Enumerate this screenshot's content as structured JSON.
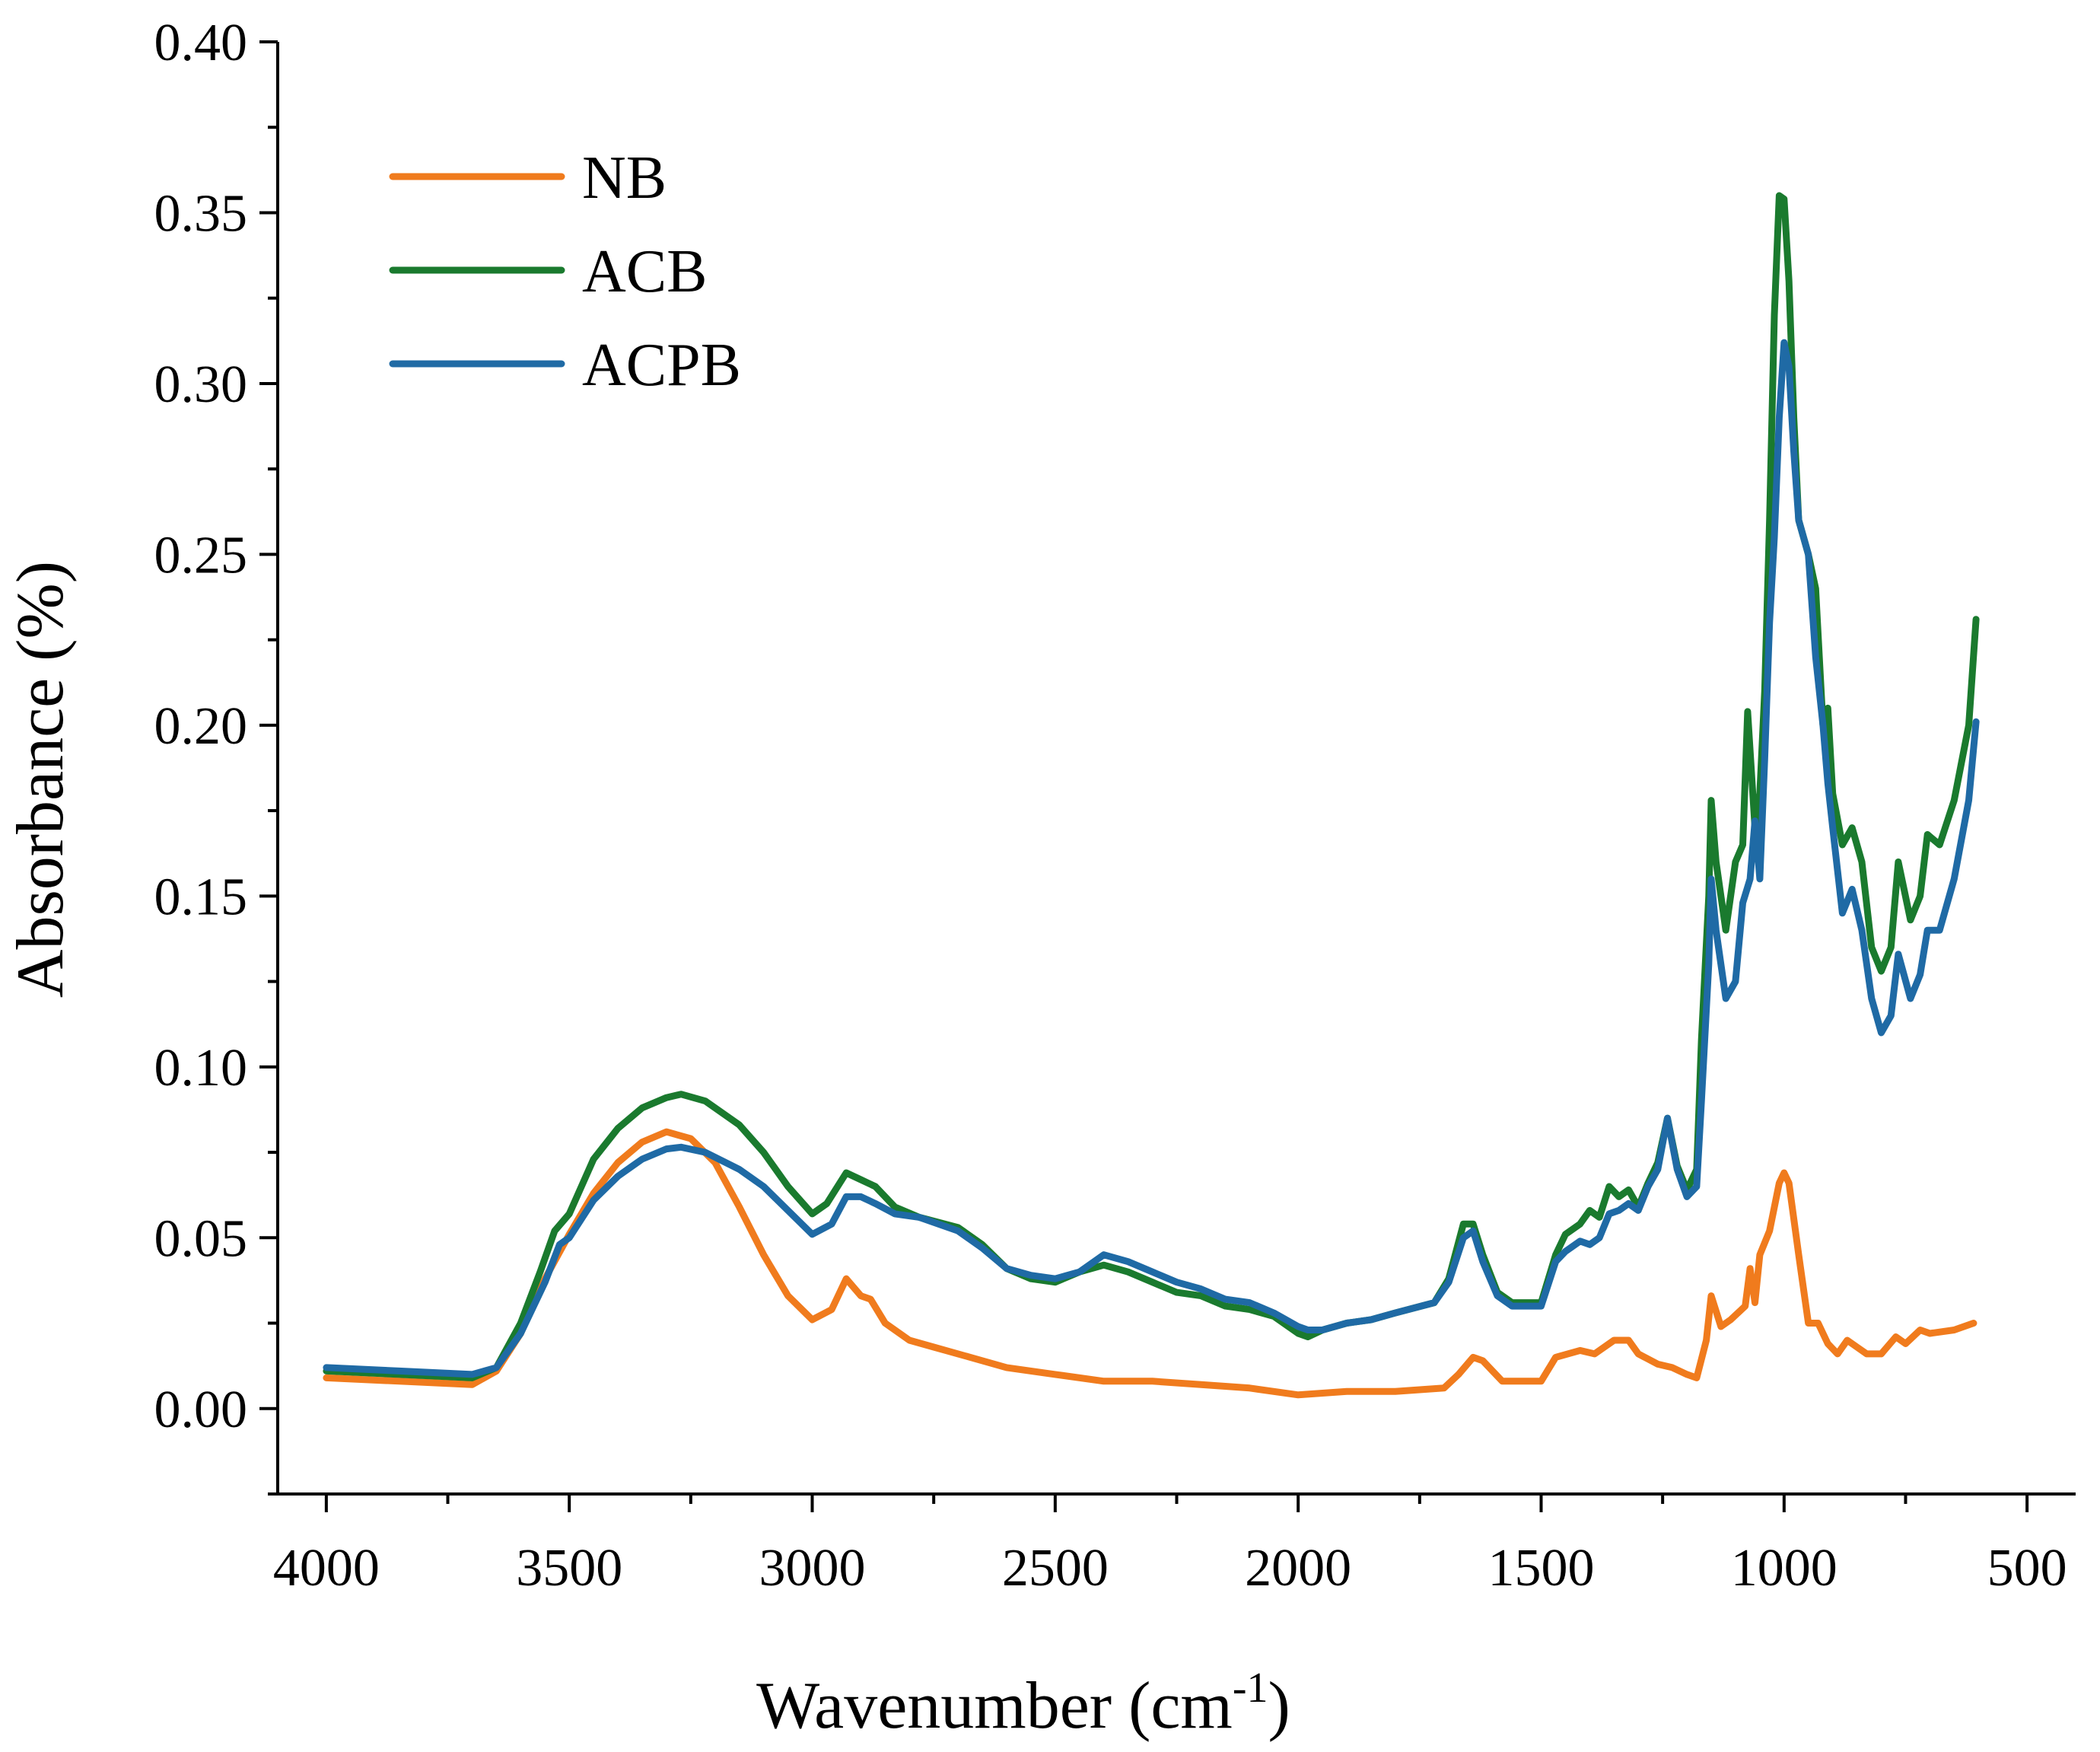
{
  "chart_data": {
    "type": "line",
    "title": "",
    "xlabel": "Wavenumber (cm",
    "xlabel_sup": "-1",
    "xlabel_close": ")",
    "ylabel": "Absorbance (%)",
    "xlim": [
      4100,
      400
    ],
    "ylim": [
      -0.025,
      0.4
    ],
    "x_ticks": [
      4000,
      3500,
      3000,
      2500,
      2000,
      1500,
      1000,
      500
    ],
    "x_tick_labels": [
      "4000",
      "3500",
      "3000",
      "2500",
      "2000",
      "1500",
      "1000",
      "500"
    ],
    "y_ticks": [
      0.0,
      0.05,
      0.1,
      0.15,
      0.2,
      0.25,
      0.3,
      0.35,
      0.4
    ],
    "y_tick_labels": [
      "0.00",
      "0.05",
      "0.10",
      "0.15",
      "0.20",
      "0.25",
      "0.30",
      "0.35",
      "0.40"
    ],
    "legend_position": "top-left",
    "series": [
      {
        "name": "NB",
        "color": "#f07b1d",
        "points": [
          [
            4000,
            0.009
          ],
          [
            3850,
            0.008
          ],
          [
            3700,
            0.007
          ],
          [
            3650,
            0.011
          ],
          [
            3600,
            0.022
          ],
          [
            3550,
            0.038
          ],
          [
            3500,
            0.051
          ],
          [
            3450,
            0.063
          ],
          [
            3400,
            0.072
          ],
          [
            3350,
            0.078
          ],
          [
            3300,
            0.081
          ],
          [
            3250,
            0.079
          ],
          [
            3200,
            0.072
          ],
          [
            3150,
            0.059
          ],
          [
            3100,
            0.045
          ],
          [
            3050,
            0.033
          ],
          [
            3000,
            0.026
          ],
          [
            2960,
            0.029
          ],
          [
            2930,
            0.038
          ],
          [
            2900,
            0.033
          ],
          [
            2880,
            0.032
          ],
          [
            2850,
            0.025
          ],
          [
            2800,
            0.02
          ],
          [
            2750,
            0.018
          ],
          [
            2700,
            0.016
          ],
          [
            2600,
            0.012
          ],
          [
            2500,
            0.01
          ],
          [
            2400,
            0.008
          ],
          [
            2300,
            0.008
          ],
          [
            2200,
            0.007
          ],
          [
            2100,
            0.006
          ],
          [
            2000,
            0.004
          ],
          [
            1900,
            0.005
          ],
          [
            1800,
            0.005
          ],
          [
            1700,
            0.006
          ],
          [
            1670,
            0.01
          ],
          [
            1640,
            0.015
          ],
          [
            1620,
            0.014
          ],
          [
            1580,
            0.008
          ],
          [
            1500,
            0.008
          ],
          [
            1470,
            0.015
          ],
          [
            1420,
            0.017
          ],
          [
            1390,
            0.016
          ],
          [
            1350,
            0.02
          ],
          [
            1320,
            0.02
          ],
          [
            1300,
            0.016
          ],
          [
            1260,
            0.013
          ],
          [
            1230,
            0.012
          ],
          [
            1200,
            0.01
          ],
          [
            1180,
            0.009
          ],
          [
            1160,
            0.02
          ],
          [
            1150,
            0.033
          ],
          [
            1130,
            0.024
          ],
          [
            1110,
            0.026
          ],
          [
            1080,
            0.03
          ],
          [
            1070,
            0.041
          ],
          [
            1060,
            0.031
          ],
          [
            1050,
            0.045
          ],
          [
            1030,
            0.052
          ],
          [
            1010,
            0.066
          ],
          [
            1000,
            0.069
          ],
          [
            990,
            0.066
          ],
          [
            970,
            0.045
          ],
          [
            950,
            0.025
          ],
          [
            930,
            0.025
          ],
          [
            910,
            0.019
          ],
          [
            890,
            0.016
          ],
          [
            870,
            0.02
          ],
          [
            850,
            0.018
          ],
          [
            830,
            0.016
          ],
          [
            800,
            0.016
          ],
          [
            770,
            0.021
          ],
          [
            750,
            0.019
          ],
          [
            720,
            0.023
          ],
          [
            700,
            0.022
          ],
          [
            650,
            0.023
          ],
          [
            610,
            0.025
          ]
        ]
      },
      {
        "name": "ACB",
        "color": "#1a7a2e",
        "points": [
          [
            4000,
            0.011
          ],
          [
            3850,
            0.01
          ],
          [
            3700,
            0.009
          ],
          [
            3650,
            0.012
          ],
          [
            3600,
            0.025
          ],
          [
            3560,
            0.04
          ],
          [
            3530,
            0.052
          ],
          [
            3500,
            0.057
          ],
          [
            3450,
            0.073
          ],
          [
            3400,
            0.082
          ],
          [
            3350,
            0.088
          ],
          [
            3300,
            0.091
          ],
          [
            3270,
            0.092
          ],
          [
            3220,
            0.09
          ],
          [
            3150,
            0.083
          ],
          [
            3100,
            0.075
          ],
          [
            3050,
            0.065
          ],
          [
            3000,
            0.057
          ],
          [
            2970,
            0.06
          ],
          [
            2930,
            0.069
          ],
          [
            2900,
            0.067
          ],
          [
            2870,
            0.065
          ],
          [
            2830,
            0.059
          ],
          [
            2780,
            0.056
          ],
          [
            2700,
            0.053
          ],
          [
            2650,
            0.048
          ],
          [
            2600,
            0.041
          ],
          [
            2550,
            0.038
          ],
          [
            2500,
            0.037
          ],
          [
            2450,
            0.04
          ],
          [
            2400,
            0.042
          ],
          [
            2350,
            0.04
          ],
          [
            2300,
            0.037
          ],
          [
            2250,
            0.034
          ],
          [
            2200,
            0.033
          ],
          [
            2150,
            0.03
          ],
          [
            2100,
            0.029
          ],
          [
            2050,
            0.027
          ],
          [
            2000,
            0.022
          ],
          [
            1980,
            0.021
          ],
          [
            1950,
            0.023
          ],
          [
            1900,
            0.025
          ],
          [
            1850,
            0.026
          ],
          [
            1800,
            0.028
          ],
          [
            1720,
            0.031
          ],
          [
            1690,
            0.038
          ],
          [
            1660,
            0.054
          ],
          [
            1640,
            0.054
          ],
          [
            1620,
            0.045
          ],
          [
            1590,
            0.034
          ],
          [
            1560,
            0.031
          ],
          [
            1500,
            0.031
          ],
          [
            1470,
            0.045
          ],
          [
            1450,
            0.051
          ],
          [
            1420,
            0.054
          ],
          [
            1400,
            0.058
          ],
          [
            1380,
            0.056
          ],
          [
            1360,
            0.065
          ],
          [
            1340,
            0.062
          ],
          [
            1320,
            0.064
          ],
          [
            1300,
            0.059
          ],
          [
            1280,
            0.066
          ],
          [
            1260,
            0.072
          ],
          [
            1240,
            0.085
          ],
          [
            1220,
            0.071
          ],
          [
            1200,
            0.064
          ],
          [
            1180,
            0.07
          ],
          [
            1170,
            0.108
          ],
          [
            1155,
            0.15
          ],
          [
            1150,
            0.178
          ],
          [
            1140,
            0.16
          ],
          [
            1120,
            0.14
          ],
          [
            1100,
            0.16
          ],
          [
            1085,
            0.165
          ],
          [
            1075,
            0.204
          ],
          [
            1060,
            0.17
          ],
          [
            1050,
            0.18
          ],
          [
            1040,
            0.21
          ],
          [
            1030,
            0.26
          ],
          [
            1020,
            0.32
          ],
          [
            1010,
            0.355
          ],
          [
            1000,
            0.354
          ],
          [
            990,
            0.33
          ],
          [
            980,
            0.29
          ],
          [
            970,
            0.26
          ],
          [
            950,
            0.25
          ],
          [
            935,
            0.24
          ],
          [
            920,
            0.2
          ],
          [
            910,
            0.205
          ],
          [
            900,
            0.18
          ],
          [
            880,
            0.165
          ],
          [
            860,
            0.17
          ],
          [
            840,
            0.16
          ],
          [
            820,
            0.135
          ],
          [
            800,
            0.128
          ],
          [
            780,
            0.135
          ],
          [
            765,
            0.16
          ],
          [
            740,
            0.143
          ],
          [
            720,
            0.15
          ],
          [
            705,
            0.168
          ],
          [
            680,
            0.165
          ],
          [
            650,
            0.178
          ],
          [
            620,
            0.2
          ],
          [
            605,
            0.231
          ]
        ]
      },
      {
        "name": "ACPB",
        "color": "#1f6aa5",
        "points": [
          [
            4000,
            0.012
          ],
          [
            3850,
            0.011
          ],
          [
            3700,
            0.01
          ],
          [
            3650,
            0.012
          ],
          [
            3600,
            0.022
          ],
          [
            3550,
            0.037
          ],
          [
            3520,
            0.048
          ],
          [
            3500,
            0.05
          ],
          [
            3450,
            0.061
          ],
          [
            3400,
            0.068
          ],
          [
            3350,
            0.073
          ],
          [
            3300,
            0.076
          ],
          [
            3270,
            0.0765
          ],
          [
            3220,
            0.075
          ],
          [
            3150,
            0.07
          ],
          [
            3100,
            0.065
          ],
          [
            3050,
            0.058
          ],
          [
            3000,
            0.051
          ],
          [
            2960,
            0.054
          ],
          [
            2930,
            0.062
          ],
          [
            2900,
            0.062
          ],
          [
            2870,
            0.06
          ],
          [
            2830,
            0.057
          ],
          [
            2780,
            0.056
          ],
          [
            2700,
            0.052
          ],
          [
            2650,
            0.047
          ],
          [
            2600,
            0.041
          ],
          [
            2550,
            0.039
          ],
          [
            2500,
            0.038
          ],
          [
            2450,
            0.04
          ],
          [
            2400,
            0.045
          ],
          [
            2350,
            0.043
          ],
          [
            2300,
            0.04
          ],
          [
            2250,
            0.037
          ],
          [
            2200,
            0.035
          ],
          [
            2150,
            0.032
          ],
          [
            2100,
            0.031
          ],
          [
            2050,
            0.028
          ],
          [
            2000,
            0.024
          ],
          [
            1980,
            0.023
          ],
          [
            1950,
            0.023
          ],
          [
            1900,
            0.025
          ],
          [
            1850,
            0.026
          ],
          [
            1800,
            0.028
          ],
          [
            1720,
            0.031
          ],
          [
            1690,
            0.037
          ],
          [
            1660,
            0.05
          ],
          [
            1640,
            0.052
          ],
          [
            1620,
            0.043
          ],
          [
            1590,
            0.033
          ],
          [
            1560,
            0.03
          ],
          [
            1500,
            0.03
          ],
          [
            1470,
            0.043
          ],
          [
            1450,
            0.046
          ],
          [
            1420,
            0.049
          ],
          [
            1400,
            0.048
          ],
          [
            1380,
            0.05
          ],
          [
            1360,
            0.057
          ],
          [
            1340,
            0.058
          ],
          [
            1320,
            0.06
          ],
          [
            1300,
            0.058
          ],
          [
            1280,
            0.065
          ],
          [
            1260,
            0.07
          ],
          [
            1240,
            0.085
          ],
          [
            1220,
            0.07
          ],
          [
            1200,
            0.062
          ],
          [
            1180,
            0.065
          ],
          [
            1170,
            0.09
          ],
          [
            1155,
            0.13
          ],
          [
            1150,
            0.155
          ],
          [
            1140,
            0.14
          ],
          [
            1120,
            0.12
          ],
          [
            1100,
            0.125
          ],
          [
            1085,
            0.148
          ],
          [
            1070,
            0.155
          ],
          [
            1060,
            0.172
          ],
          [
            1050,
            0.155
          ],
          [
            1040,
            0.19
          ],
          [
            1030,
            0.23
          ],
          [
            1020,
            0.255
          ],
          [
            1010,
            0.29
          ],
          [
            1000,
            0.312
          ],
          [
            990,
            0.305
          ],
          [
            980,
            0.28
          ],
          [
            970,
            0.26
          ],
          [
            950,
            0.25
          ],
          [
            935,
            0.22
          ],
          [
            920,
            0.2
          ],
          [
            910,
            0.183
          ],
          [
            900,
            0.17
          ],
          [
            880,
            0.145
          ],
          [
            860,
            0.152
          ],
          [
            840,
            0.14
          ],
          [
            820,
            0.12
          ],
          [
            800,
            0.11
          ],
          [
            780,
            0.115
          ],
          [
            765,
            0.133
          ],
          [
            740,
            0.12
          ],
          [
            720,
            0.127
          ],
          [
            705,
            0.14
          ],
          [
            680,
            0.14
          ],
          [
            650,
            0.155
          ],
          [
            620,
            0.178
          ],
          [
            605,
            0.201
          ]
        ]
      }
    ]
  }
}
